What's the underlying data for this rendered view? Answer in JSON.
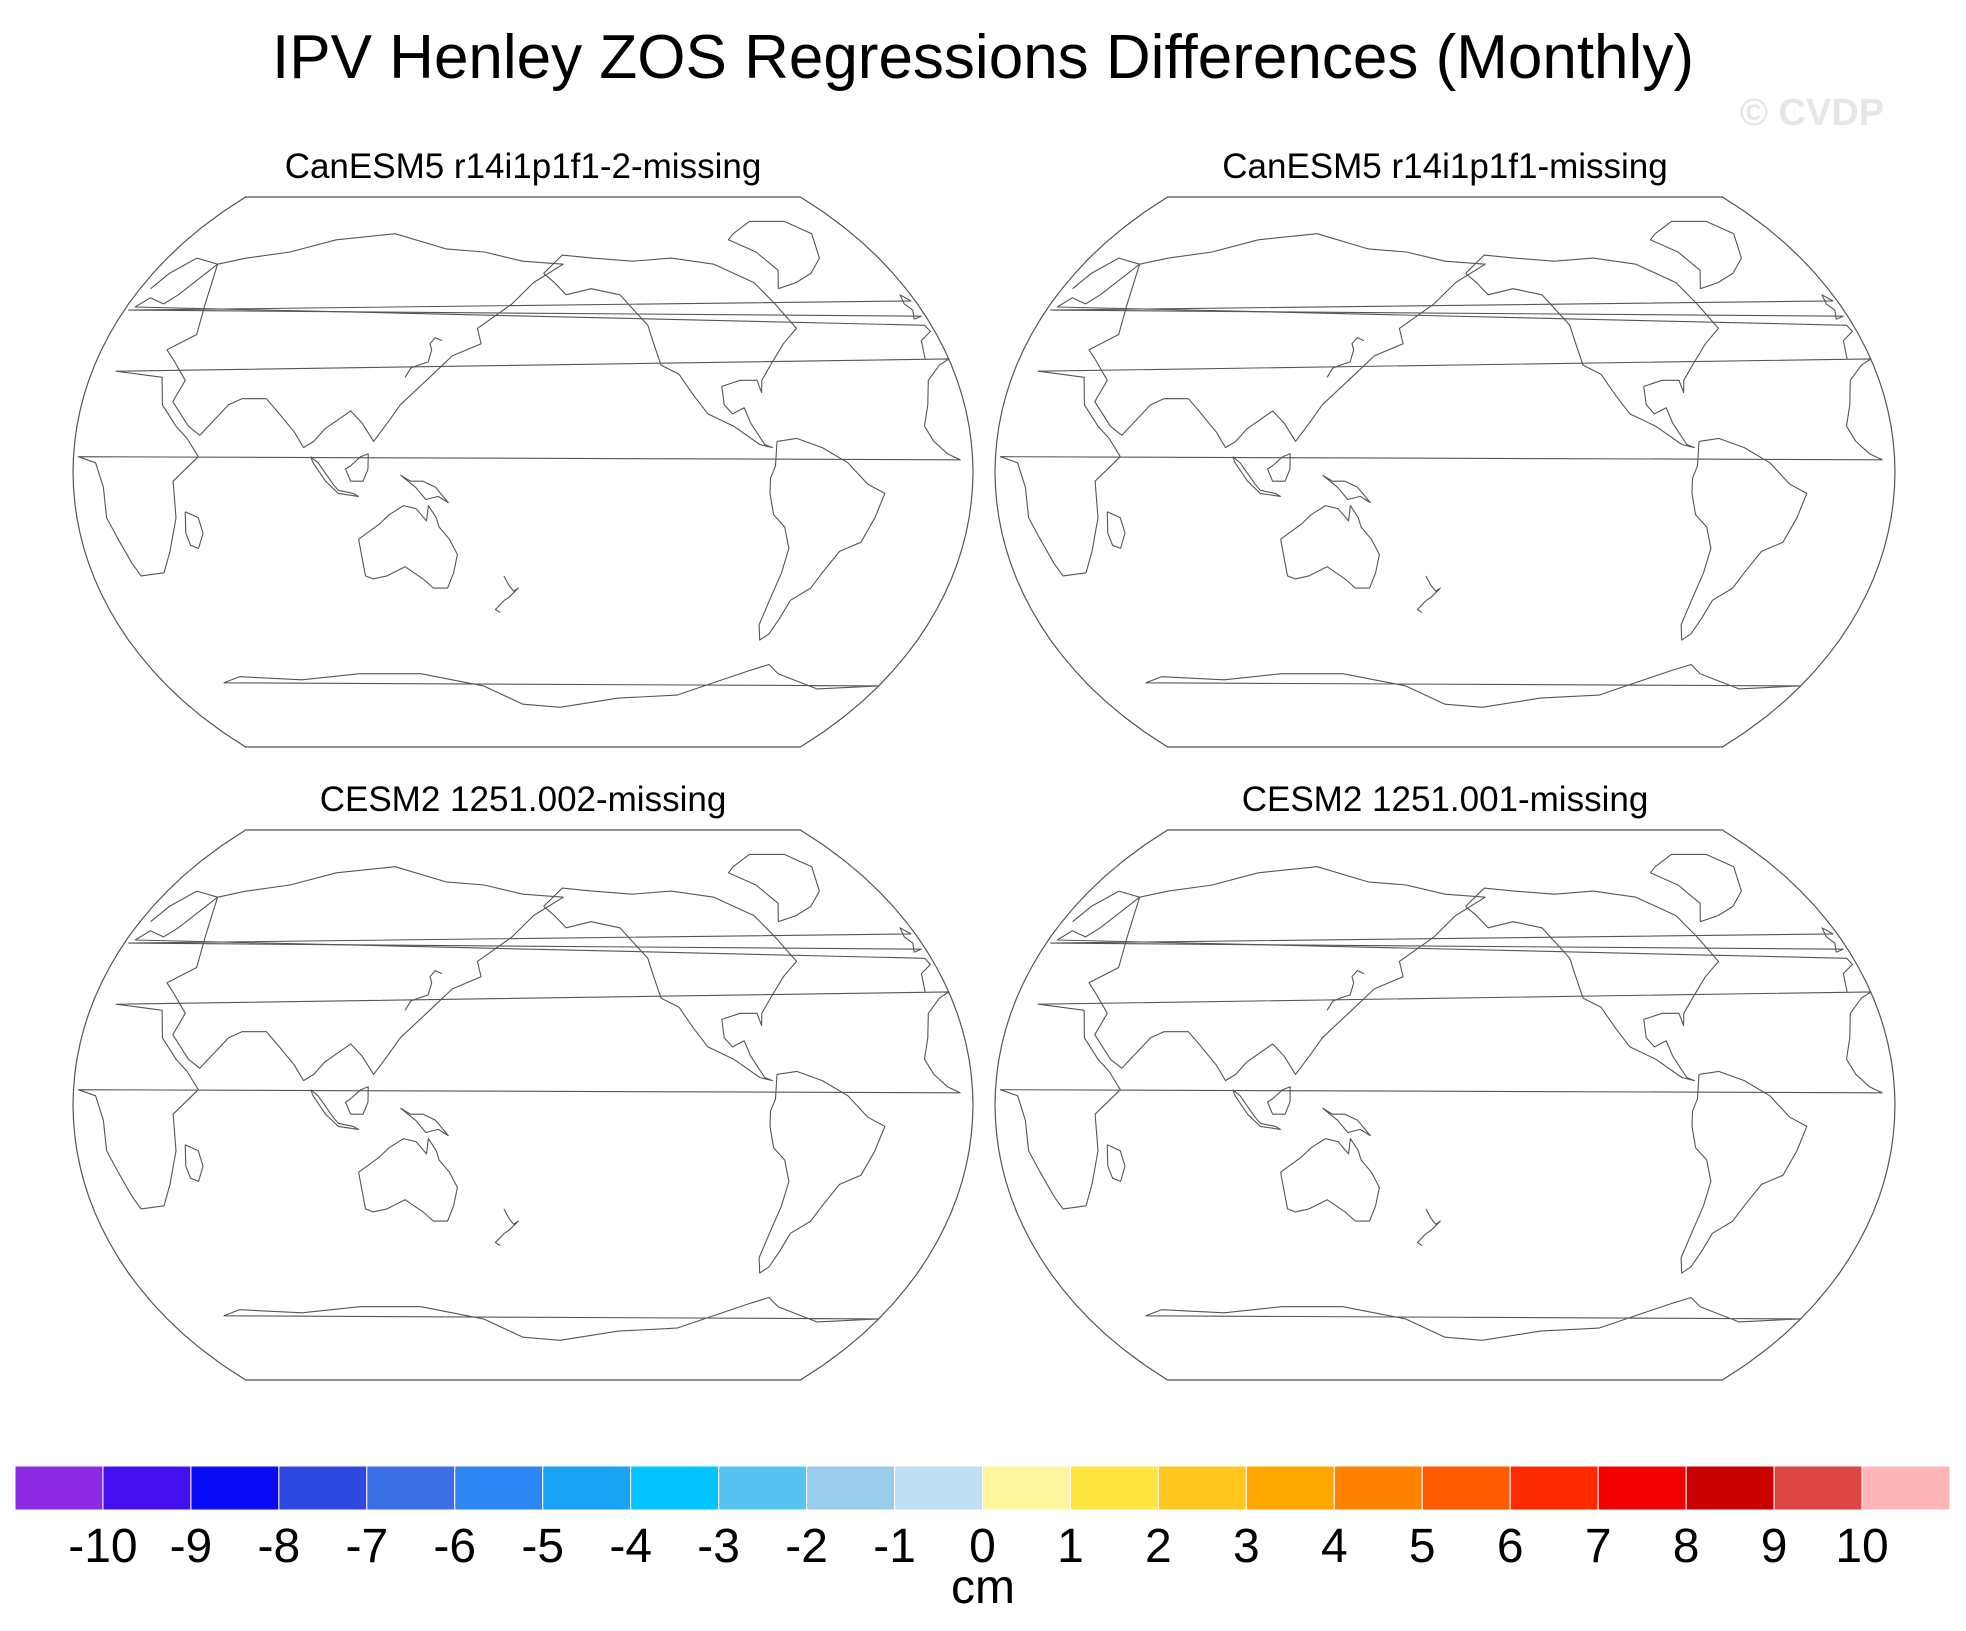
{
  "title": "IPV Henley ZOS Regressions Differences (Monthly)",
  "watermark": "© CVDP",
  "panels": [
    {
      "title": "CanESM5 r14i1p1f1-2-missing"
    },
    {
      "title": "CanESM5 r14i1p1f1-missing"
    },
    {
      "title": "CESM2 1251.002-missing"
    },
    {
      "title": "CESM2 1251.001-missing"
    }
  ],
  "chart_data": {
    "type": "heatmap",
    "title": "IPV Henley ZOS Regressions Differences (Monthly)",
    "projection": "Robinson, Pacific-centered",
    "panels": [
      {
        "title": "CanESM5 r14i1p1f1-2-missing",
        "values": "all missing"
      },
      {
        "title": "CanESM5 r14i1p1f1-missing",
        "values": "all missing"
      },
      {
        "title": "CESM2 1251.002-missing",
        "values": "all missing"
      },
      {
        "title": "CESM2 1251.001-missing",
        "values": "all missing"
      }
    ],
    "colorbar": {
      "label": "cm",
      "levels": [
        -10,
        -9,
        -8,
        -7,
        -6,
        -5,
        -4,
        -3,
        -2,
        -1,
        0,
        1,
        2,
        3,
        4,
        5,
        6,
        7,
        8,
        9,
        10
      ],
      "colors": [
        "#8a2be2",
        "#4510f0",
        "#0a0af5",
        "#2f48e0",
        "#3c6ee6",
        "#2b86f2",
        "#1aa2f5",
        "#00c3ff",
        "#56c3f0",
        "#99cdea",
        "#bfe1f3",
        "#fff59d",
        "#ffe540",
        "#ffc720",
        "#ffa600",
        "#ff8200",
        "#ff5a00",
        "#ff2a00",
        "#f20000",
        "#c80000",
        "#de4545",
        "#ffb5b8"
      ]
    }
  }
}
